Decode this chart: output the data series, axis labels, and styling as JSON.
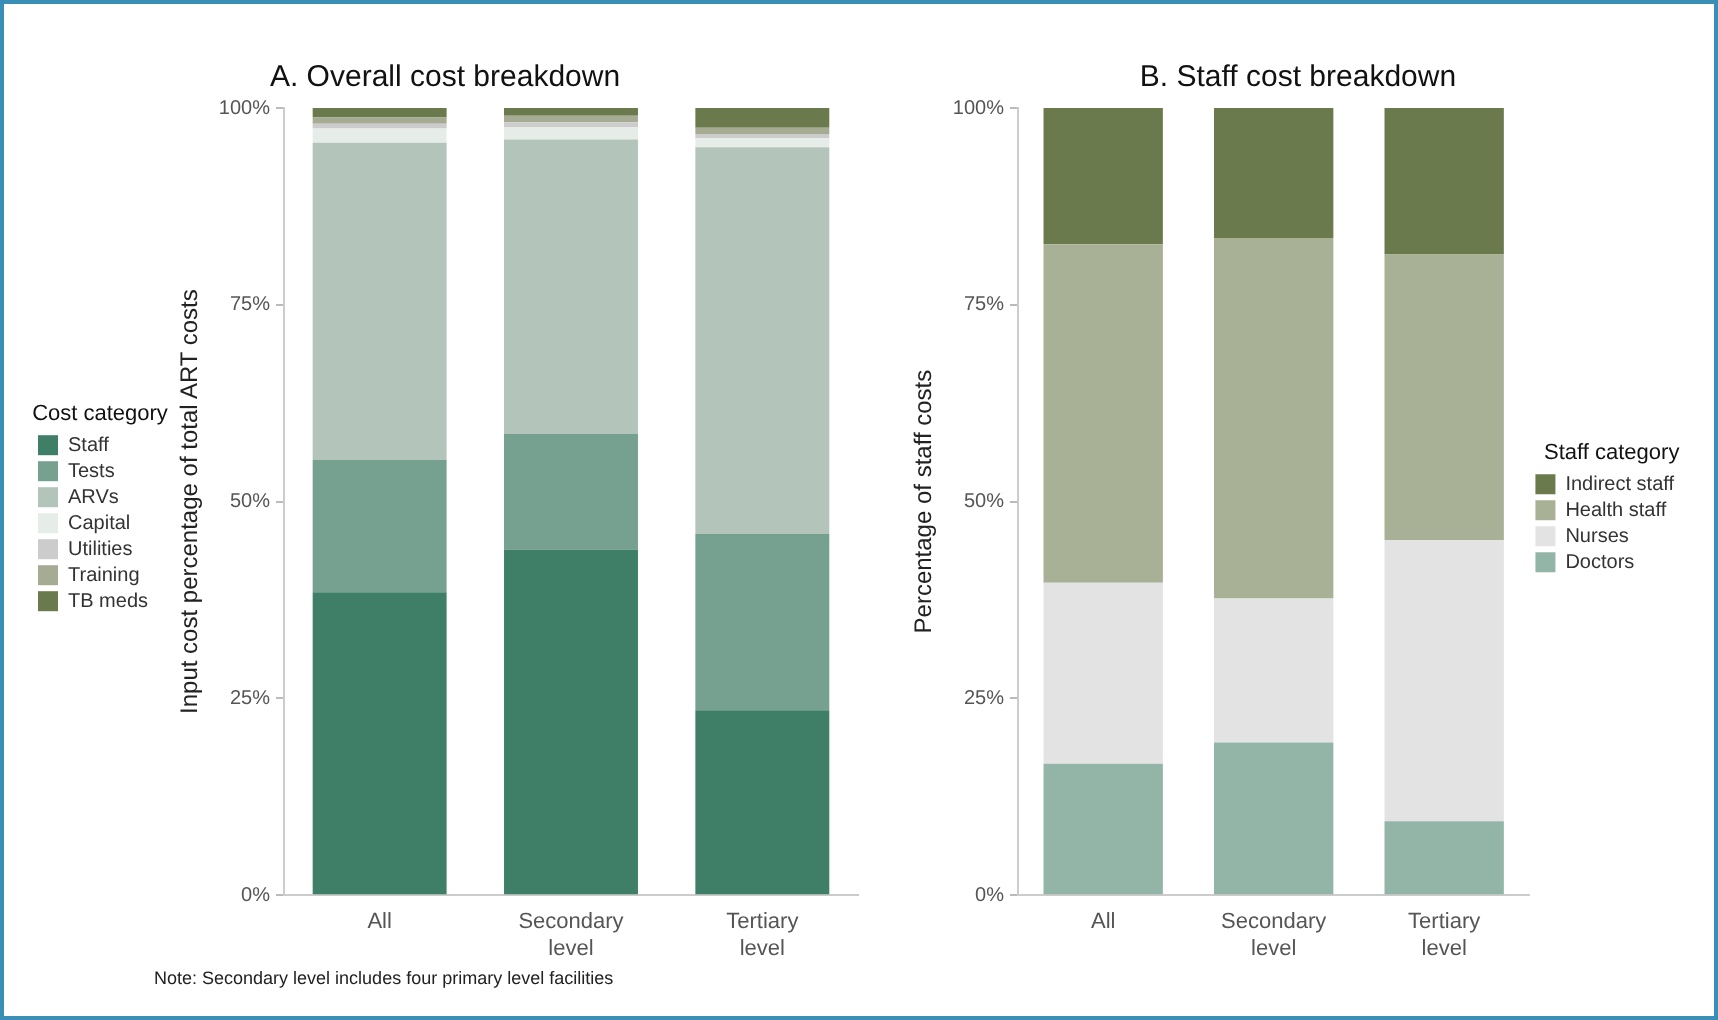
{
  "chart_data": [
    {
      "type": "bar",
      "title": "A. Overall cost breakdown",
      "ylabel": "Input cost percentage of total ART costs",
      "legend_title": "Cost category",
      "categories": [
        "All",
        "Secondary level",
        "Tertiary level"
      ],
      "stacked": true,
      "legend": "left",
      "grid": false,
      "ylim": [
        0,
        100
      ],
      "yticks": [
        {
          "value": 0,
          "label": "0%"
        },
        {
          "value": 25,
          "label": "25%"
        },
        {
          "value": 50,
          "label": "50%"
        },
        {
          "value": 75,
          "label": "75%"
        },
        {
          "value": 100,
          "label": "100%"
        }
      ],
      "series": [
        {
          "name": "Staff",
          "color": "#3f7f68",
          "values": [
            38.5,
            43.9,
            23.5
          ]
        },
        {
          "name": "Tests",
          "color": "#76a090",
          "values": [
            16.8,
            14.7,
            22.4
          ]
        },
        {
          "name": "ARVs",
          "color": "#b3c4bb",
          "values": [
            40.3,
            37.4,
            49.1
          ]
        },
        {
          "name": "Capital",
          "color": "#e6ece8",
          "values": [
            1.8,
            1.6,
            1.2
          ]
        },
        {
          "name": "Utilities",
          "color": "#cccccc",
          "values": [
            0.6,
            0.6,
            0.5
          ]
        },
        {
          "name": "Training",
          "color": "#a6ac93",
          "values": [
            0.8,
            0.8,
            0.8
          ]
        },
        {
          "name": "TB meds",
          "color": "#6b7a4c",
          "values": [
            1.2,
            1.0,
            2.5
          ]
        }
      ],
      "annotations": [
        "Note: Secondary level includes four primary level facilities"
      ]
    },
    {
      "type": "bar",
      "title": "B. Staff cost breakdown",
      "ylabel": "Percentage of staff costs",
      "legend_title": "Staff category",
      "categories": [
        "All",
        "Secondary level",
        "Tertiary level"
      ],
      "stacked": true,
      "legend": "right",
      "grid": false,
      "ylim": [
        0,
        100
      ],
      "yticks": [
        {
          "value": 0,
          "label": "0%"
        },
        {
          "value": 25,
          "label": "25%"
        },
        {
          "value": 50,
          "label": "50%"
        },
        {
          "value": 75,
          "label": "75%"
        },
        {
          "value": 100,
          "label": "100%"
        }
      ],
      "series": [
        {
          "name": "Doctors",
          "color": "#93b5a8",
          "values": [
            16.7,
            19.4,
            9.4
          ]
        },
        {
          "name": "Nurses",
          "color": "#e3e3e3",
          "values": [
            23.0,
            18.3,
            35.7
          ]
        },
        {
          "name": "Health staff",
          "color": "#a8b095",
          "values": [
            43.0,
            45.8,
            36.3
          ]
        },
        {
          "name": "Indirect staff",
          "color": "#6b7a4c",
          "values": [
            17.3,
            16.5,
            18.6
          ]
        }
      ]
    }
  ]
}
